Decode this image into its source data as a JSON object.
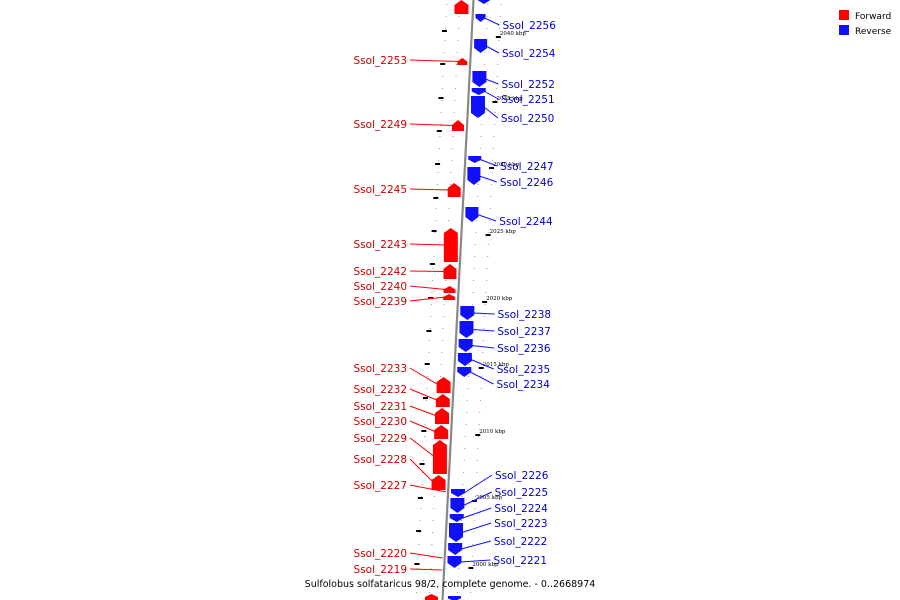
{
  "caption": "Sulfolobus solfataricus 98/2, complete genome. - 0..2668974",
  "legend": [
    {
      "label": "Forward",
      "color": "#ff0000"
    },
    {
      "label": "Reverse",
      "color": "#1010ff"
    }
  ],
  "colors": {
    "forward": "#ff0000",
    "reverse": "#1010ff",
    "axis": "#888888",
    "forward_text": "#cc0000",
    "reverse_text": "#0000cc"
  },
  "scale_labels": [
    "2040 kbp",
    "2035 kbp",
    "2030 kbp",
    "2025 kbp",
    "2020 kbp",
    "2015 kbp",
    "2010 kbp",
    "2005 kbp",
    "2000 kbp"
  ],
  "forward_genes": [
    {
      "name": "Ssol_2253"
    },
    {
      "name": "Ssol_2249"
    },
    {
      "name": "Ssol_2245"
    },
    {
      "name": "Ssol_2243"
    },
    {
      "name": "Ssol_2242"
    },
    {
      "name": "Ssol_2240"
    },
    {
      "name": "Ssol_2239"
    },
    {
      "name": "Ssol_2233"
    },
    {
      "name": "Ssol_2232"
    },
    {
      "name": "Ssol_2231"
    },
    {
      "name": "Ssol_2230"
    },
    {
      "name": "Ssol_2229"
    },
    {
      "name": "Ssol_2228"
    },
    {
      "name": "Ssol_2227"
    },
    {
      "name": "Ssol_2220"
    },
    {
      "name": "Ssol_2219"
    }
  ],
  "reverse_genes": [
    {
      "name": "Ssol_2256"
    },
    {
      "name": "Ssol_2254"
    },
    {
      "name": "Ssol_2252"
    },
    {
      "name": "Ssol_2251"
    },
    {
      "name": "Ssol_2250"
    },
    {
      "name": "Ssol_2247"
    },
    {
      "name": "Ssol_2246"
    },
    {
      "name": "Ssol_2244"
    },
    {
      "name": "Ssol_2238"
    },
    {
      "name": "Ssol_2237"
    },
    {
      "name": "Ssol_2236"
    },
    {
      "name": "Ssol_2235"
    },
    {
      "name": "Ssol_2234"
    },
    {
      "name": "Ssol_2226"
    },
    {
      "name": "Ssol_2225"
    },
    {
      "name": "Ssol_2224"
    },
    {
      "name": "Ssol_2223"
    },
    {
      "name": "Ssol_2222"
    },
    {
      "name": "Ssol_2221"
    }
  ]
}
